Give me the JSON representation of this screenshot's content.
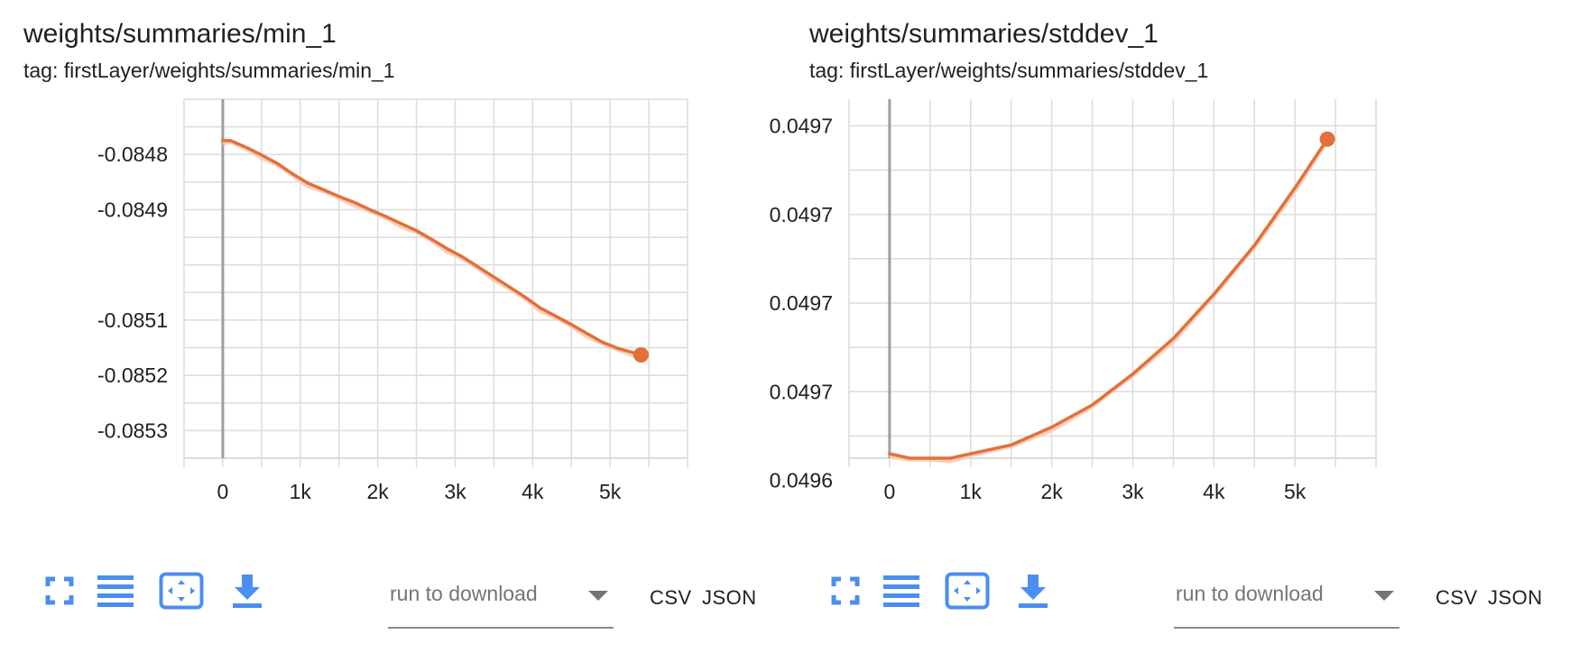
{
  "colors": {
    "series": "#e2703a",
    "series_raw": "#f6c9b3",
    "grid": "#dcdcdc",
    "axis": "#9e9e9e",
    "icon": "#4b8ef0"
  },
  "panels": [
    {
      "title": "weights/summaries/min_1",
      "tag": "tag: firstLayer/weights/summaries/min_1",
      "download": {
        "placeholder": "run to download",
        "csv": "CSV",
        "json": "JSON"
      },
      "toolbar_icons": [
        "fullscreen-icon",
        "toggle-log-scale-icon",
        "fit-domain-icon",
        "download-icon"
      ],
      "chart_data": {
        "type": "line",
        "title": "",
        "xlabel": "",
        "ylabel": "",
        "xlim": [
          -500,
          6000
        ],
        "ylim": [
          -0.08535,
          -0.0847
        ],
        "x_ticks": [
          0,
          1000,
          2000,
          3000,
          4000,
          5000
        ],
        "x_tick_labels": [
          "0",
          "1k",
          "2k",
          "3k",
          "4k",
          "5k"
        ],
        "y_ticks": [
          -0.0848,
          -0.0849,
          -0.0851,
          -0.0852,
          -0.0853
        ],
        "y_tick_labels": [
          "-0.0848",
          "-0.0849",
          "-0.0851",
          -0.0852,
          "-0.0853"
        ],
        "grid": true,
        "series": [
          {
            "x": [
              0,
              100,
              300,
              500,
              700,
              900,
              1100,
              1300,
              1500,
              1700,
              1900,
              2100,
              2300,
              2500,
              2700,
              2900,
              3100,
              3300,
              3500,
              3700,
              3900,
              4100,
              4300,
              4500,
              4700,
              4900,
              5100,
              5300,
              5400
            ],
            "values": [
              -0.084775,
              -0.084775,
              -0.084787,
              -0.084801,
              -0.084816,
              -0.084835,
              -0.084852,
              -0.084864,
              -0.084876,
              -0.084887,
              -0.0849,
              -0.084912,
              -0.084925,
              -0.084938,
              -0.084954,
              -0.084971,
              -0.084986,
              -0.085004,
              -0.085022,
              -0.08504,
              -0.085058,
              -0.085078,
              -0.085093,
              -0.085108,
              -0.085124,
              -0.08514,
              -0.085151,
              -0.085159,
              -0.085163
            ]
          }
        ]
      }
    },
    {
      "title": "weights/summaries/stddev_1",
      "tag": "tag: firstLayer/weights/summaries/stddev_1",
      "download": {
        "placeholder": "run to download",
        "csv": "CSV",
        "json": "JSON"
      },
      "toolbar_icons": [
        "fullscreen-icon",
        "toggle-log-scale-icon",
        "fit-domain-icon",
        "download-icon"
      ],
      "chart_data": {
        "type": "line",
        "title": "",
        "xlabel": "",
        "ylabel": "",
        "xlim": [
          -500,
          6000
        ],
        "ylim": [
          0.049635,
          0.049716
        ],
        "x_ticks": [
          0,
          1000,
          2000,
          3000,
          4000,
          5000
        ],
        "x_tick_labels": [
          "0",
          "1k",
          "2k",
          "3k",
          "4k",
          "5k"
        ],
        "y_ticks": [
          0.04971,
          0.04969,
          0.04967,
          0.04965,
          0.04963
        ],
        "y_tick_labels": [
          "0.0497",
          "0.0497",
          "0.0497",
          "0.0497",
          "0.0496"
        ],
        "grid": true,
        "series": [
          {
            "x": [
              0,
              250,
              500,
              750,
              1000,
              1500,
              2000,
              2500,
              3000,
              3500,
              4000,
              4500,
              5000,
              5400
            ],
            "values": [
              0.049636,
              0.049635,
              0.049635,
              0.049635,
              0.049636,
              0.049638,
              0.049642,
              0.049647,
              0.049654,
              0.049662,
              0.049672,
              0.049683,
              0.049696,
              0.049707
            ]
          }
        ]
      }
    }
  ]
}
